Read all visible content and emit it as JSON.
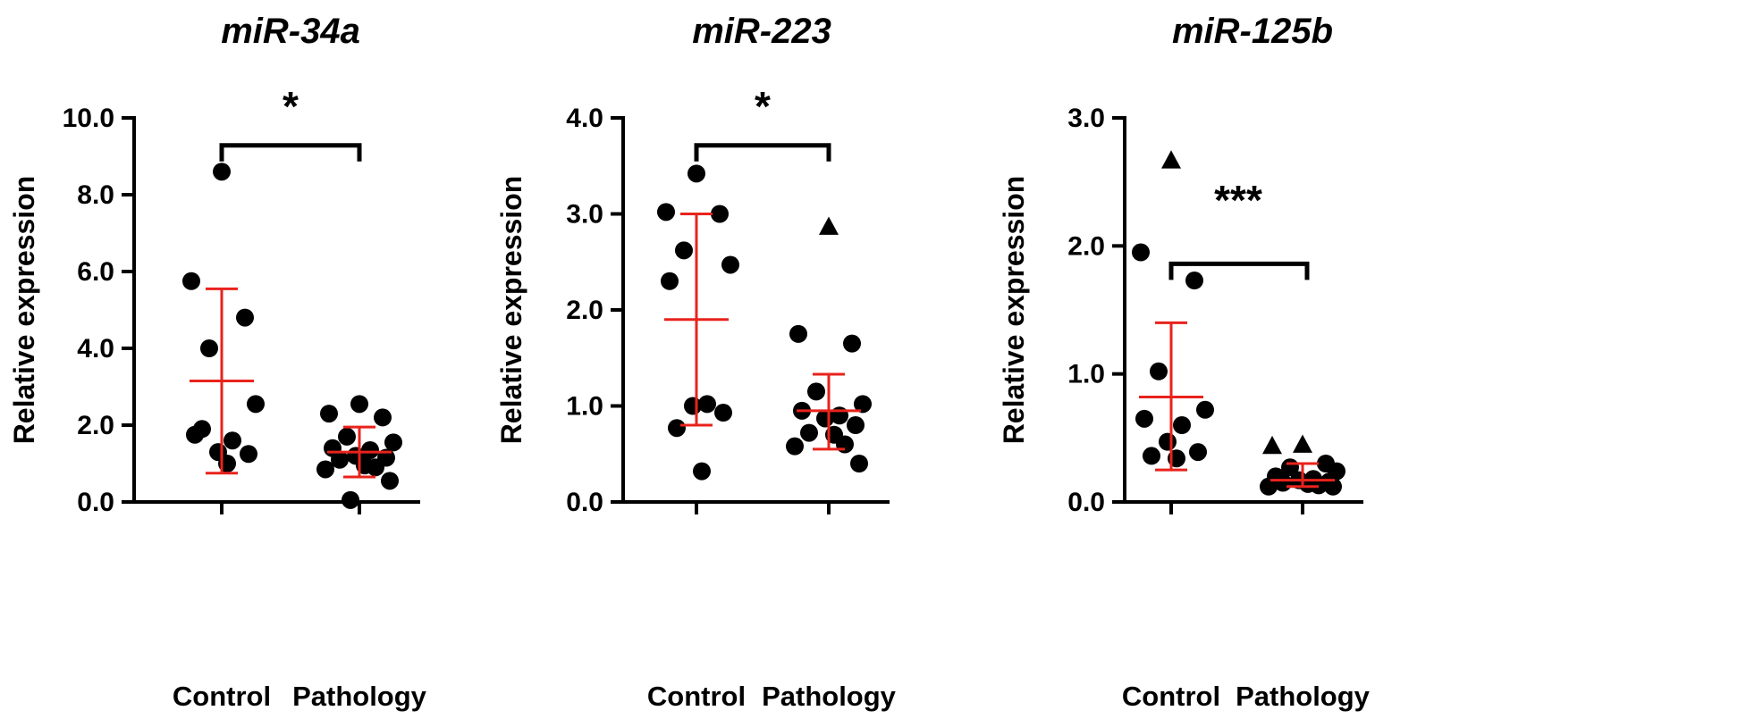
{
  "chart_data": [
    {
      "type": "scatter",
      "title": "miR-34a",
      "ylabel": "Relative expression",
      "ylim": [
        0,
        10
      ],
      "yticks": [
        "0.0",
        "2.0",
        "4.0",
        "6.0",
        "8.0",
        "10.0"
      ],
      "categories": [
        "Control",
        "Pathology"
      ],
      "groups": [
        {
          "name": "Control",
          "points": [
            {
              "y": 8.6,
              "shape": "circle"
            },
            {
              "y": 5.75,
              "shape": "circle"
            },
            {
              "y": 4.8,
              "shape": "circle"
            },
            {
              "y": 4.0,
              "shape": "circle"
            },
            {
              "y": 2.55,
              "shape": "circle"
            },
            {
              "y": 1.75,
              "shape": "circle"
            },
            {
              "y": 1.6,
              "shape": "circle"
            },
            {
              "y": 1.3,
              "shape": "circle"
            },
            {
              "y": 1.25,
              "shape": "circle"
            },
            {
              "y": 1.9,
              "shape": "circle"
            },
            {
              "y": 1.0,
              "shape": "circle"
            }
          ],
          "mean": 3.15,
          "sd_low": 0.75,
          "sd_high": 5.55
        },
        {
          "name": "Pathology",
          "points": [
            {
              "y": 2.55,
              "shape": "circle"
            },
            {
              "y": 2.3,
              "shape": "circle"
            },
            {
              "y": 2.2,
              "shape": "circle"
            },
            {
              "y": 1.7,
              "shape": "circle"
            },
            {
              "y": 1.55,
              "shape": "circle"
            },
            {
              "y": 1.4,
              "shape": "circle"
            },
            {
              "y": 1.35,
              "shape": "circle"
            },
            {
              "y": 1.2,
              "shape": "circle"
            },
            {
              "y": 1.15,
              "shape": "circle"
            },
            {
              "y": 1.1,
              "shape": "circle"
            },
            {
              "y": 0.95,
              "shape": "circle"
            },
            {
              "y": 0.9,
              "shape": "circle"
            },
            {
              "y": 0.85,
              "shape": "circle"
            },
            {
              "y": 0.55,
              "shape": "circle"
            },
            {
              "y": 0.05,
              "shape": "circle"
            }
          ],
          "mean": 1.3,
          "sd_low": 0.65,
          "sd_high": 1.95
        }
      ],
      "significance": {
        "label": "*",
        "level": 9.75
      }
    },
    {
      "type": "scatter",
      "title": "miR-223",
      "ylabel": "Relative expression",
      "ylim": [
        0,
        4
      ],
      "yticks": [
        "0.0",
        "1.0",
        "2.0",
        "3.0",
        "4.0"
      ],
      "categories": [
        "Control",
        "Pathology"
      ],
      "groups": [
        {
          "name": "Control",
          "points": [
            {
              "y": 3.42,
              "shape": "circle"
            },
            {
              "y": 3.02,
              "shape": "circle"
            },
            {
              "y": 3.0,
              "shape": "circle"
            },
            {
              "y": 2.62,
              "shape": "circle"
            },
            {
              "y": 2.47,
              "shape": "circle"
            },
            {
              "y": 2.3,
              "shape": "circle"
            },
            {
              "y": 1.02,
              "shape": "circle"
            },
            {
              "y": 1.0,
              "shape": "circle"
            },
            {
              "y": 0.93,
              "shape": "circle"
            },
            {
              "y": 0.77,
              "shape": "circle"
            },
            {
              "y": 0.32,
              "shape": "circle"
            }
          ],
          "mean": 1.9,
          "sd_low": 0.8,
          "sd_high": 3.0
        },
        {
          "name": "Pathology",
          "points": [
            {
              "y": 2.87,
              "shape": "triangle"
            },
            {
              "y": 1.75,
              "shape": "circle"
            },
            {
              "y": 1.65,
              "shape": "circle"
            },
            {
              "y": 1.15,
              "shape": "circle"
            },
            {
              "y": 1.02,
              "shape": "circle"
            },
            {
              "y": 0.95,
              "shape": "circle"
            },
            {
              "y": 0.9,
              "shape": "circle"
            },
            {
              "y": 0.87,
              "shape": "circle"
            },
            {
              "y": 0.8,
              "shape": "circle"
            },
            {
              "y": 0.72,
              "shape": "circle"
            },
            {
              "y": 0.7,
              "shape": "circle"
            },
            {
              "y": 0.6,
              "shape": "circle"
            },
            {
              "y": 0.58,
              "shape": "circle"
            },
            {
              "y": 0.4,
              "shape": "circle"
            }
          ],
          "mean": 0.95,
          "sd_low": 0.55,
          "sd_high": 1.33
        }
      ],
      "significance": {
        "label": "*",
        "level": 3.9
      }
    },
    {
      "type": "scatter",
      "title": "miR-125b",
      "ylabel": "Relative expression",
      "ylim": [
        0,
        3
      ],
      "yticks": [
        "0.0",
        "1.0",
        "2.0",
        "3.0"
      ],
      "categories": [
        "Control",
        "Pathology"
      ],
      "groups": [
        {
          "name": "Control",
          "points": [
            {
              "y": 2.67,
              "shape": "triangle"
            },
            {
              "y": 1.95,
              "shape": "circle"
            },
            {
              "y": 1.73,
              "shape": "circle"
            },
            {
              "y": 1.02,
              "shape": "circle"
            },
            {
              "y": 0.72,
              "shape": "circle"
            },
            {
              "y": 0.65,
              "shape": "circle"
            },
            {
              "y": 0.6,
              "shape": "circle"
            },
            {
              "y": 0.47,
              "shape": "circle"
            },
            {
              "y": 0.39,
              "shape": "circle"
            },
            {
              "y": 0.36,
              "shape": "circle"
            },
            {
              "y": 0.34,
              "shape": "circle"
            }
          ],
          "mean": 0.82,
          "sd_low": 0.25,
          "sd_high": 1.4
        },
        {
          "name": "Pathology",
          "points": [
            {
              "y": 0.45,
              "shape": "triangle"
            },
            {
              "y": 0.44,
              "shape": "triangle"
            },
            {
              "y": 0.3,
              "shape": "circle"
            },
            {
              "y": 0.27,
              "shape": "circle"
            },
            {
              "y": 0.24,
              "shape": "circle"
            },
            {
              "y": 0.2,
              "shape": "circle"
            },
            {
              "y": 0.18,
              "shape": "circle"
            },
            {
              "y": 0.17,
              "shape": "circle"
            },
            {
              "y": 0.16,
              "shape": "circle"
            },
            {
              "y": 0.15,
              "shape": "circle"
            },
            {
              "y": 0.14,
              "shape": "circle"
            },
            {
              "y": 0.13,
              "shape": "circle"
            },
            {
              "y": 0.12,
              "shape": "circle"
            },
            {
              "y": 0.12,
              "shape": "circle"
            }
          ],
          "mean": 0.17,
          "sd_low": 0.12,
          "sd_high": 0.3
        }
      ],
      "significance": {
        "label": "***",
        "level": 2.0
      }
    }
  ]
}
